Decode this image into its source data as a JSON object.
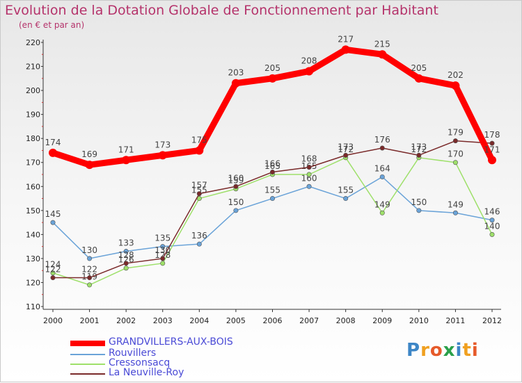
{
  "title": "Evolution de la Dotation Globale de Fonctionnement par Habitant",
  "subtitle": "(en € et par an)",
  "logo_text": "Proxiti",
  "chart_data": {
    "type": "line",
    "title": "Evolution de la Dotation Globale de Fonctionnement par Habitant",
    "ylabel": "(en € et par an)",
    "xlabel": "",
    "ylim": [
      110,
      220
    ],
    "yticks": [
      110,
      120,
      130,
      140,
      150,
      160,
      170,
      180,
      190,
      200,
      210,
      220
    ],
    "categories": [
      "2000",
      "2001",
      "2002",
      "2003",
      "2004",
      "2005",
      "2006",
      "2007",
      "2008",
      "2009",
      "2010",
      "2011",
      "2012"
    ],
    "grid": false,
    "legend_position": "bottom-left",
    "series": [
      {
        "name": "GRANDVILLERS-AUX-BOIS",
        "color": "#ff0000",
        "values": [
          174,
          169,
          171,
          173,
          175,
          203,
          205,
          208,
          217,
          215,
          205,
          202,
          171
        ]
      },
      {
        "name": "Rouvillers",
        "color": "#6aa3d8",
        "values": [
          145,
          130,
          133,
          135,
          136,
          150,
          155,
          160,
          155,
          164,
          150,
          149,
          146
        ]
      },
      {
        "name": "Cressonsacq",
        "color": "#9ee06a",
        "values": [
          124,
          119,
          126,
          128,
          155,
          159,
          165,
          165,
          172,
          149,
          172,
          170,
          140
        ]
      },
      {
        "name": "La Neuville-Roy",
        "color": "#7a2a2a",
        "values": [
          122,
          122,
          128,
          130,
          157,
          160,
          166,
          168,
          173,
          176,
          173,
          179,
          178
        ]
      }
    ]
  }
}
